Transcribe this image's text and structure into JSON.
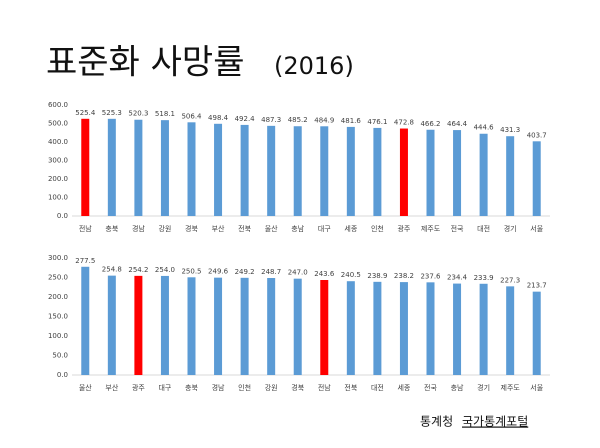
{
  "title": "표준화 사망률",
  "title_suffix": "(2016)",
  "chart_data": [
    {
      "type": "bar",
      "categories": [
        "전남",
        "충북",
        "경남",
        "강원",
        "경북",
        "부산",
        "전북",
        "울산",
        "충남",
        "대구",
        "세종",
        "인천",
        "광주",
        "제주도",
        "전국",
        "대전",
        "경기",
        "서울"
      ],
      "values": [
        525.4,
        525.3,
        520.3,
        518.1,
        506.4,
        498.4,
        492.4,
        487.3,
        485.2,
        484.9,
        481.6,
        476.1,
        472.8,
        466.2,
        464.4,
        444.6,
        431.3,
        403.7
      ],
      "value_labels": [
        "525.4",
        "525.3",
        "520.3",
        "518.1",
        "506.4",
        "498.4",
        "492.4",
        "487.3",
        "485.2",
        "484.9",
        "481.6",
        "476.1",
        "472.8",
        "466.2",
        "464.4",
        "444.6",
        "431.3",
        "403.7"
      ],
      "colors": [
        "#ff0000",
        "#5b9bd5",
        "#5b9bd5",
        "#5b9bd5",
        "#5b9bd5",
        "#5b9bd5",
        "#5b9bd5",
        "#5b9bd5",
        "#5b9bd5",
        "#5b9bd5",
        "#5b9bd5",
        "#5b9bd5",
        "#ff0000",
        "#5b9bd5",
        "#5b9bd5",
        "#5b9bd5",
        "#5b9bd5",
        "#5b9bd5"
      ],
      "ylim": [
        0,
        600
      ],
      "yticks": [
        {
          "value": 0,
          "label": "0.0"
        },
        {
          "value": 100,
          "label": "100.0"
        },
        {
          "value": 200,
          "label": "200.0"
        },
        {
          "value": 300,
          "label": "300.0"
        },
        {
          "value": 400,
          "label": "400.0"
        },
        {
          "value": 500,
          "label": "500.0"
        },
        {
          "value": 600,
          "label": "600.0"
        }
      ],
      "grid": false
    },
    {
      "type": "bar",
      "categories": [
        "울산",
        "부산",
        "광주",
        "대구",
        "충북",
        "경남",
        "인천",
        "강원",
        "경북",
        "전남",
        "전북",
        "대전",
        "세종",
        "전국",
        "충남",
        "경기",
        "제주도",
        "서울"
      ],
      "values": [
        277.5,
        254.8,
        254.2,
        254.0,
        250.5,
        249.6,
        249.2,
        248.7,
        247.0,
        243.6,
        240.5,
        238.9,
        238.2,
        237.6,
        234.4,
        233.9,
        227.3,
        213.7
      ],
      "value_labels": [
        "277.5",
        "254.8",
        "254.2",
        "254.0",
        "250.5",
        "249.6",
        "249.2",
        "248.7",
        "247.0",
        "243.6",
        "240.5",
        "238.9",
        "238.2",
        "237.6",
        "234.4",
        "233.9",
        "227.3",
        "213.7"
      ],
      "colors": [
        "#5b9bd5",
        "#5b9bd5",
        "#ff0000",
        "#5b9bd5",
        "#5b9bd5",
        "#5b9bd5",
        "#5b9bd5",
        "#5b9bd5",
        "#5b9bd5",
        "#ff0000",
        "#5b9bd5",
        "#5b9bd5",
        "#5b9bd5",
        "#5b9bd5",
        "#5b9bd5",
        "#5b9bd5",
        "#5b9bd5",
        "#5b9bd5"
      ],
      "ylim": [
        0,
        300
      ],
      "yticks": [
        {
          "value": 0,
          "label": "0.0"
        },
        {
          "value": 50,
          "label": "50.0"
        },
        {
          "value": 100,
          "label": "100.0"
        },
        {
          "value": 150,
          "label": "150.0"
        },
        {
          "value": 200,
          "label": "200.0"
        },
        {
          "value": 250,
          "label": "250.0"
        },
        {
          "value": 300,
          "label": "300.0"
        }
      ],
      "grid": false
    }
  ],
  "footer": {
    "source": "통계청",
    "link": "국가통계포털"
  }
}
